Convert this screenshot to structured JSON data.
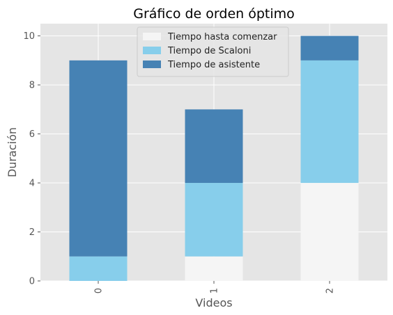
{
  "chart_data": {
    "type": "bar",
    "stacked": true,
    "title": "Gráfico de orden óptimo",
    "xlabel": "Videos",
    "ylabel": "Duración",
    "categories": [
      "0",
      "1",
      "2"
    ],
    "series": [
      {
        "name": "Tiempo hasta comenzar",
        "values": [
          0,
          1,
          4
        ],
        "color": "#f5f5f5"
      },
      {
        "name": "Tiempo de Scaloni",
        "values": [
          1,
          3,
          5
        ],
        "color": "#87ceeb"
      },
      {
        "name": "Tiempo de asistente",
        "values": [
          8,
          3,
          1
        ],
        "color": "#4682b4"
      }
    ],
    "ylim": [
      0,
      10.5
    ],
    "yticks": [
      "0",
      "2",
      "4",
      "6",
      "8",
      "10"
    ],
    "grid": true,
    "background": "#e5e5e5",
    "legend": "top-center"
  }
}
